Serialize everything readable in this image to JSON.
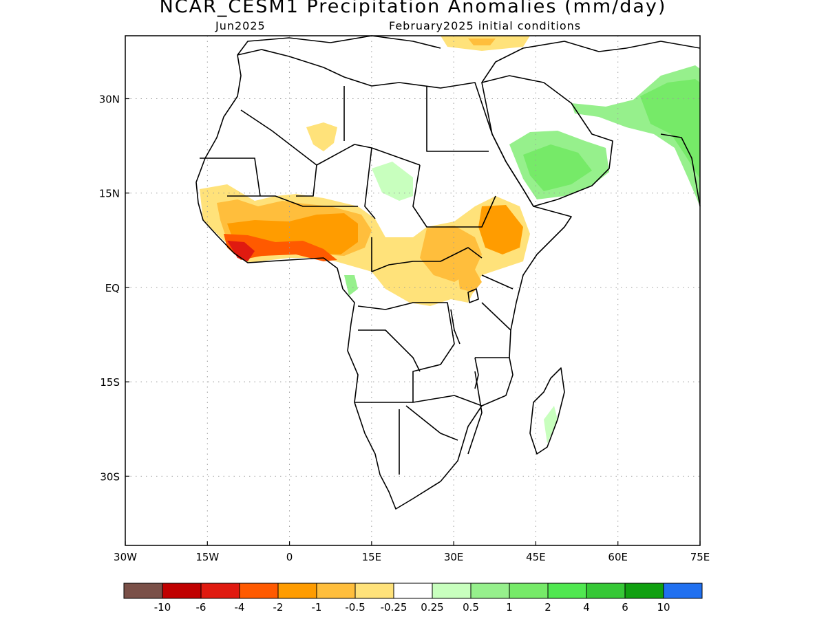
{
  "header": {
    "title": "NCAR_CESM1 Precipitation Anomalies (mm/day)",
    "forecast_month": "Jun2025",
    "init_conditions": "February2025 initial conditions"
  },
  "map": {
    "lon_range": [
      -30,
      75
    ],
    "lat_range": [
      -41,
      40
    ],
    "lon_ticks": [
      {
        "value": -30,
        "label": "30W"
      },
      {
        "value": -15,
        "label": "15W"
      },
      {
        "value": 0,
        "label": "0"
      },
      {
        "value": 15,
        "label": "15E"
      },
      {
        "value": 30,
        "label": "30E"
      },
      {
        "value": 45,
        "label": "45E"
      },
      {
        "value": 60,
        "label": "60E"
      },
      {
        "value": 75,
        "label": "75E"
      }
    ],
    "lat_ticks": [
      {
        "value": 30,
        "label": "30N"
      },
      {
        "value": 15,
        "label": "15N"
      },
      {
        "value": 0,
        "label": "EQ"
      },
      {
        "value": -15,
        "label": "15S"
      },
      {
        "value": -30,
        "label": "30S"
      }
    ],
    "grid": true
  },
  "colorbar": {
    "colors": [
      "#7a5048",
      "#c00000",
      "#e01a10",
      "#ff5a00",
      "#ff9c00",
      "#ffbe3c",
      "#ffe27a",
      "#ffffff",
      "#c8ffbe",
      "#96f08c",
      "#76ea68",
      "#50e850",
      "#36c836",
      "#10a010",
      "#2070f0"
    ],
    "labels": [
      "-10",
      "-6",
      "-4",
      "-2",
      "-1",
      "-0.5",
      "-0.25",
      "0.25",
      "0.5",
      "1",
      "2",
      "4",
      "6",
      "10"
    ]
  }
}
